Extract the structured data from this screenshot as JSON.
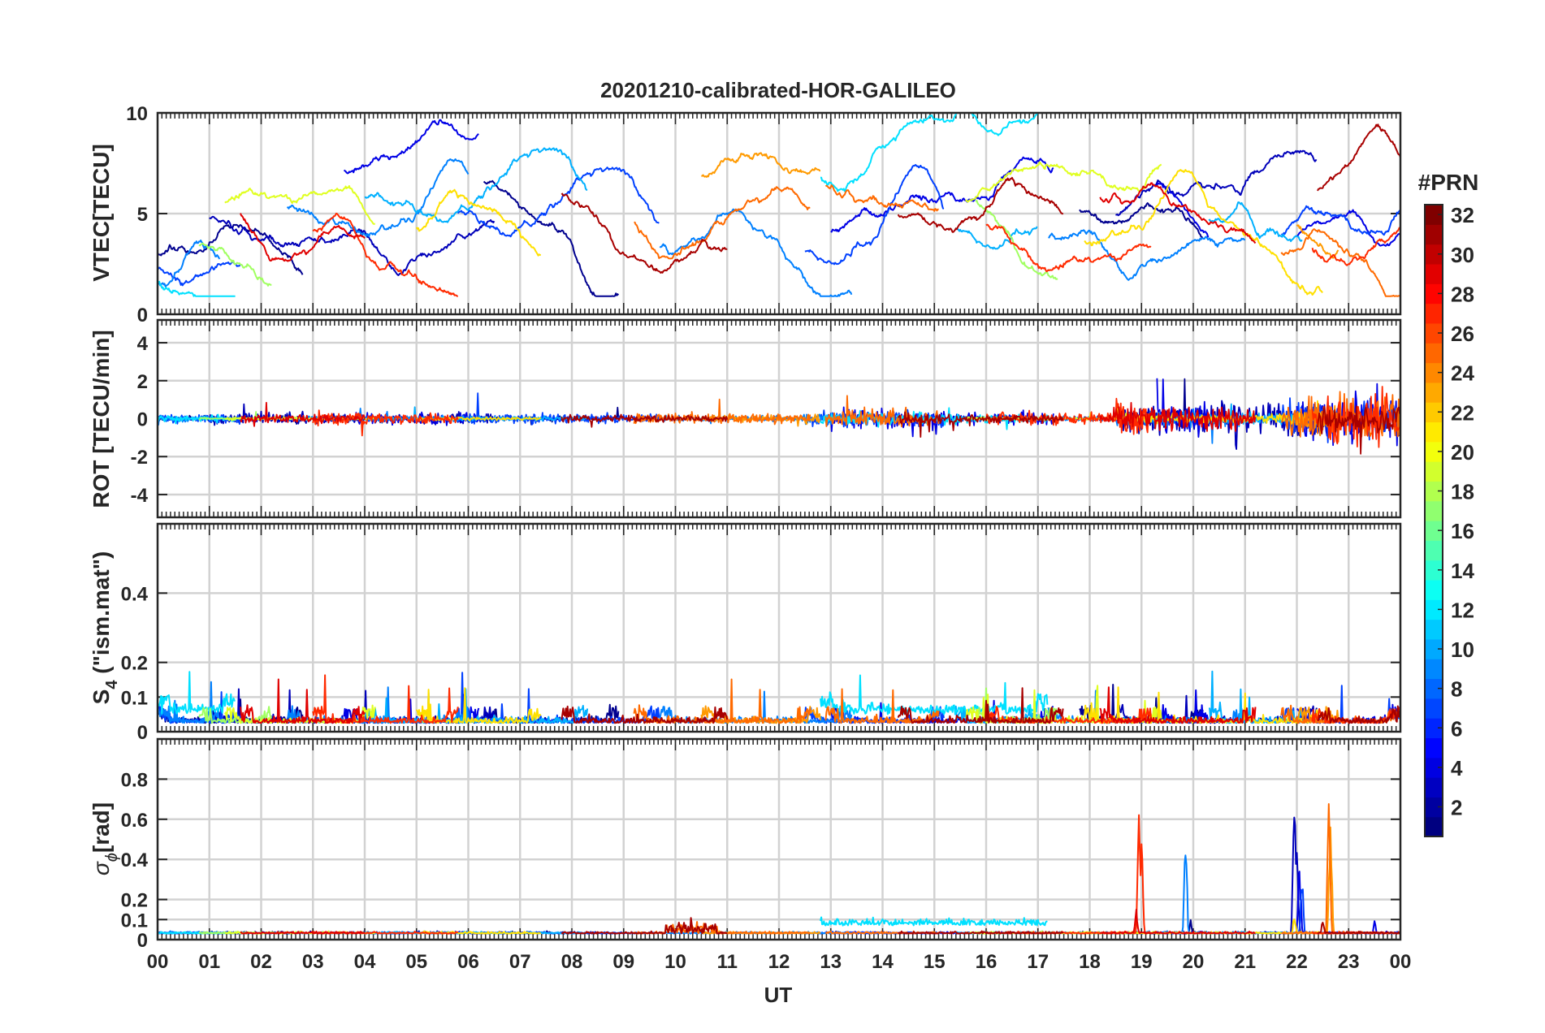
{
  "chart_data": {
    "type": "line",
    "title": "20201210-calibrated-HOR-GALILEO",
    "xlabel": "UT",
    "x_tick_labels": [
      "00",
      "01",
      "02",
      "03",
      "04",
      "05",
      "06",
      "07",
      "08",
      "09",
      "10",
      "11",
      "12",
      "13",
      "14",
      "15",
      "16",
      "17",
      "18",
      "19",
      "20",
      "21",
      "22",
      "23",
      "00"
    ],
    "xlim": [
      0,
      24
    ],
    "grid": true,
    "panels": [
      {
        "id": "vtec",
        "ylabel": "VTEC[TECU]",
        "ylim": [
          0,
          10
        ],
        "yticks": [
          0,
          5,
          10
        ],
        "ytick_labels": [
          "0",
          "5",
          "10"
        ]
      },
      {
        "id": "rot",
        "ylabel": "ROT [TECU/min]",
        "ylim": [
          -5.2,
          5.2
        ],
        "yticks": [
          -4,
          -2,
          0,
          2,
          4
        ],
        "ytick_labels": [
          "-4",
          "-2",
          "0",
          "2",
          "4"
        ]
      },
      {
        "id": "s4",
        "ylabel_main": "S",
        "ylabel_sub": "4",
        "ylabel_rest": " (\"ism.mat\")",
        "ylim": [
          0,
          0.6
        ],
        "yticks": [
          0,
          0.1,
          0.2,
          0.4
        ],
        "ytick_labels": [
          "0",
          "0.1",
          "0.2",
          "0.4"
        ]
      },
      {
        "id": "sigma",
        "ylabel_main": "σ",
        "ylabel_sub": "ϕ",
        "ylabel_rest": "[rad]",
        "ylim": [
          0,
          1
        ],
        "yticks": [
          0,
          0.1,
          0.2,
          0.4,
          0.6,
          0.8
        ],
        "ytick_labels": [
          "0",
          "0.1",
          "0.2",
          "0.4",
          "0.6",
          "0.8"
        ]
      }
    ],
    "colorbar": {
      "label": "#PRN",
      "range": [
        1,
        32
      ],
      "tick_values": [
        2,
        4,
        6,
        8,
        10,
        12,
        14,
        16,
        18,
        20,
        22,
        24,
        26,
        28,
        30,
        32
      ],
      "tick_labels": [
        "2",
        "4",
        "6",
        "8",
        "10",
        "12",
        "14",
        "16",
        "18",
        "20",
        "22",
        "24",
        "26",
        "28",
        "30",
        "32"
      ],
      "colormap": "jet"
    },
    "series": [
      {
        "prn": 1,
        "name": "PRN 1",
        "color": "#00008f",
        "passes": [
          {
            "start": 0,
            "end": 2.8
          },
          {
            "start": 6.3,
            "end": 8.9
          },
          {
            "start": 17.8,
            "end": 20.2
          }
        ],
        "base": [
          2.7,
          6.5,
          5.5
        ],
        "scint": {
          "sigma_peaks": [
            [
              19.95,
              0.12
            ]
          ],
          "rot_amp": 1.2
        }
      },
      {
        "prn": 2,
        "name": "PRN 2",
        "color": "#0000ba",
        "passes": [
          {
            "start": 1.0,
            "end": 6.5
          },
          {
            "start": 18.5,
            "end": 22.4
          }
        ],
        "base": [
          5.0,
          5.2
        ],
        "scint": {
          "sigma_peaks": [
            [
              21.95,
              1.0
            ],
            [
              22.0,
              0.6
            ]
          ],
          "rot_amp": 2.6
        }
      },
      {
        "prn": 3,
        "name": "PRN 3",
        "color": "#0000e6",
        "passes": [
          {
            "start": 3.6,
            "end": 6.2
          },
          {
            "start": 13.0,
            "end": 17.3
          },
          {
            "start": 19.3,
            "end": 20.3
          },
          {
            "start": 22.0,
            "end": 24
          }
        ],
        "base": [
          7.5,
          4.3,
          6.5,
          4.0
        ],
        "scint": {
          "sigma_peaks": [
            [
              22.05,
              0.45
            ],
            [
              23.5,
              0.12
            ]
          ],
          "rot_amp": 2.8
        }
      },
      {
        "prn": 5,
        "name": "PRN 5",
        "color": "#0040ff",
        "passes": [
          {
            "start": 0.0,
            "end": 1.6
          },
          {
            "start": 5.8,
            "end": 9.7
          },
          {
            "start": 12.5,
            "end": 15.2
          },
          {
            "start": 21.7,
            "end": 24
          }
        ],
        "base": [
          2.6,
          4.8,
          3.2,
          3.8
        ],
        "scint": {
          "sigma_peaks": [
            [
              22.1,
              0.35
            ]
          ],
          "rot_amp": 2.2
        }
      },
      {
        "prn": 8,
        "name": "PRN 8",
        "color": "#0080ff",
        "passes": [
          {
            "start": 0.0,
            "end": 1.2
          },
          {
            "start": 2.5,
            "end": 6.0
          },
          {
            "start": 9.7,
            "end": 13.4
          },
          {
            "start": 17.2,
            "end": 21.0
          }
        ],
        "base": [
          1.5,
          5.3,
          3.3,
          4.2
        ],
        "scint": {
          "sigma_peaks": [
            [
              19.85,
              0.6
            ]
          ],
          "rot_amp": 1.4
        }
      },
      {
        "prn": 10,
        "name": "PRN 10",
        "color": "#00b0ff",
        "passes": [
          {
            "start": 4.0,
            "end": 8.3
          },
          {
            "start": 15.4,
            "end": 17.0
          },
          {
            "start": 20.3,
            "end": 22.1
          }
        ],
        "base": [
          6.0,
          4.0,
          3.8
        ],
        "scint": {
          "sigma_peaks": [
            [
              19.83,
              0.55
            ]
          ],
          "rot_amp": 1.0
        }
      },
      {
        "prn": 12,
        "name": "PRN 12",
        "color": "#00e0ff",
        "passes": [
          {
            "start": 0.0,
            "end": 1.5
          },
          {
            "start": 12.8,
            "end": 17.2
          }
        ],
        "base": [
          1.4,
          6.3
        ],
        "scint": {
          "sigma_peaks": [],
          "rot_amp": 1.8,
          "s4_boost": 0.04
        }
      },
      {
        "prn": 18,
        "name": "PRN 18",
        "color": "#a0ff60",
        "passes": [
          {
            "start": 0.8,
            "end": 2.2
          },
          {
            "start": 15.8,
            "end": 17.4
          }
        ],
        "base": [
          3.5,
          5.6
        ],
        "scint": {
          "sigma_peaks": [],
          "rot_amp": 0.6
        }
      },
      {
        "prn": 20,
        "name": "PRN 20",
        "color": "#e0ff20",
        "passes": [
          {
            "start": 1.3,
            "end": 4.2
          },
          {
            "start": 15.6,
            "end": 19.4
          }
        ],
        "base": [
          5.5,
          5.2
        ],
        "scint": {
          "sigma_peaks": [],
          "rot_amp": 0.8
        }
      },
      {
        "prn": 21,
        "name": "PRN 21",
        "color": "#ffe000",
        "passes": [
          {
            "start": 5.0,
            "end": 7.4
          },
          {
            "start": 17.9,
            "end": 22.5
          }
        ],
        "base": [
          3.8,
          3.6
        ],
        "scint": {
          "sigma_peaks": [
            [
              21.95,
              0.15
            ]
          ],
          "rot_amp": 0.8
        }
      },
      {
        "prn": 23,
        "name": "PRN 23",
        "color": "#ff9a00",
        "passes": [
          {
            "start": 10.5,
            "end": 12.8
          },
          {
            "start": 22.0,
            "end": 22.8
          }
        ],
        "base": [
          7.0,
          4.5
        ],
        "scint": {
          "sigma_peaks": [
            [
              22.65,
              0.8
            ]
          ],
          "rot_amp": 1.6
        }
      },
      {
        "prn": 25,
        "name": "PRN 25",
        "color": "#ff6a00",
        "passes": [
          {
            "start": 9.2,
            "end": 12.6
          },
          {
            "start": 12.9,
            "end": 15.1
          },
          {
            "start": 21.7,
            "end": 24
          }
        ],
        "base": [
          4.5,
          6.5,
          3.0
        ],
        "scint": {
          "sigma_peaks": [
            [
              22.62,
              0.78
            ]
          ],
          "rot_amp": 2.4
        }
      },
      {
        "prn": 27,
        "name": "PRN 27",
        "color": "#ff2a00",
        "passes": [
          {
            "start": 3.0,
            "end": 5.8
          },
          {
            "start": 16.0,
            "end": 19.2
          },
          {
            "start": 22.3,
            "end": 24
          }
        ],
        "base": [
          4.0,
          4.6,
          3.0
        ],
        "scint": {
          "sigma_peaks": [
            [
              18.95,
              0.68
            ],
            [
              19.0,
              0.55
            ]
          ],
          "rot_amp": 2.8
        }
      },
      {
        "prn": 29,
        "name": "PRN 29",
        "color": "#e00000",
        "passes": [
          {
            "start": 1.6,
            "end": 4.0
          },
          {
            "start": 18.2,
            "end": 21.2
          }
        ],
        "base": [
          5.2,
          6.0
        ],
        "scint": {
          "sigma_peaks": [
            [
              18.9,
              0.2
            ]
          ],
          "rot_amp": 2.0
        }
      },
      {
        "prn": 31,
        "name": "PRN 31",
        "color": "#a80000",
        "passes": [
          {
            "start": 7.8,
            "end": 11.0
          },
          {
            "start": 14.3,
            "end": 17.5
          },
          {
            "start": 22.4,
            "end": 24
          }
        ],
        "base": [
          5.8,
          4.8,
          6.2
        ],
        "scint": {
          "sigma_peaks": [
            [
              22.5,
              0.12
            ]
          ],
          "rot_amp": 1.6
        }
      }
    ]
  }
}
